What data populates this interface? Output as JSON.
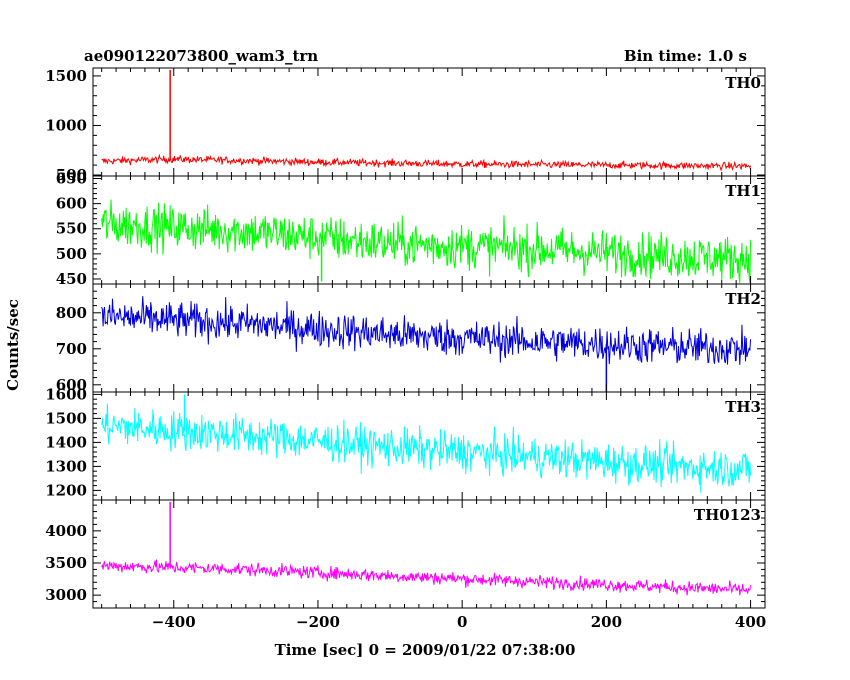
{
  "header": {
    "left_title": "ae090122073800_wam3_trn",
    "right_title": "Bin time: 1.0 s"
  },
  "chart_data": {
    "type": "line",
    "xlabel": "Time [sec] 0 = 2009/01/22 07:38:00",
    "ylabel": "Counts/sec",
    "xlim": [
      -512,
      420
    ],
    "xticks": [
      -400,
      -200,
      0,
      200,
      400
    ],
    "x_start": -500,
    "x_end": 400,
    "bin": 1.0,
    "panels": [
      {
        "name": "TH0",
        "color": "#ff0000",
        "ylim": [
          490,
          1580
        ],
        "yticks": [
          500,
          1000,
          1500
        ],
        "trend": [
          [
            -500,
            640
          ],
          [
            -400,
            660
          ],
          [
            -200,
            630
          ],
          [
            0,
            610
          ],
          [
            200,
            600
          ],
          [
            400,
            590
          ]
        ],
        "noise": 18,
        "spikes": [
          {
            "x": -405,
            "y": 1560
          }
        ]
      },
      {
        "name": "TH1",
        "color": "#00ff00",
        "ylim": [
          440,
          655
        ],
        "yticks": [
          450,
          500,
          550,
          600,
          650
        ],
        "trend": [
          [
            -500,
            560
          ],
          [
            -300,
            545
          ],
          [
            -100,
            520
          ],
          [
            100,
            510
          ],
          [
            300,
            495
          ],
          [
            400,
            490
          ]
        ],
        "noise": 22,
        "spikes": [
          {
            "x": -195,
            "y": 445
          }
        ]
      },
      {
        "name": "TH2",
        "color": "#0000dd",
        "ylim": [
          580,
          880
        ],
        "yticks": [
          600,
          700,
          800
        ],
        "trend": [
          [
            -500,
            790
          ],
          [
            -300,
            770
          ],
          [
            -100,
            740
          ],
          [
            100,
            720
          ],
          [
            300,
            705
          ],
          [
            400,
            700
          ]
        ],
        "noise": 25,
        "spikes": [
          {
            "x": 200,
            "y": 580
          }
        ]
      },
      {
        "name": "TH3",
        "color": "#00ffff",
        "ylim": [
          1160,
          1610
        ],
        "yticks": [
          1200,
          1300,
          1400,
          1500,
          1600
        ],
        "trend": [
          [
            -500,
            1470
          ],
          [
            -300,
            1430
          ],
          [
            -100,
            1380
          ],
          [
            100,
            1340
          ],
          [
            300,
            1300
          ],
          [
            400,
            1290
          ]
        ],
        "noise": 40,
        "spikes": [
          {
            "x": -385,
            "y": 1600
          }
        ]
      },
      {
        "name": "TH0123",
        "color": "#ff00ff",
        "ylim": [
          2800,
          4480
        ],
        "yticks": [
          3000,
          3500,
          4000
        ],
        "trend": [
          [
            -500,
            3460
          ],
          [
            -300,
            3400
          ],
          [
            -100,
            3300
          ],
          [
            100,
            3210
          ],
          [
            300,
            3120
          ],
          [
            400,
            3080
          ]
        ],
        "noise": 50,
        "spikes": [
          {
            "x": -405,
            "y": 4450
          }
        ]
      }
    ]
  }
}
